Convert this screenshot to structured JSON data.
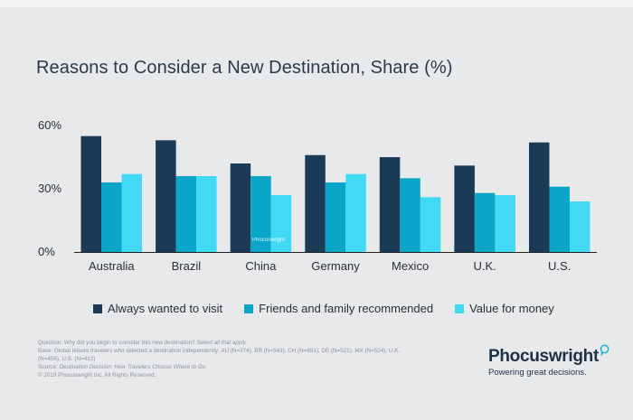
{
  "title": "Reasons to Consider a New Destination, Share (%)",
  "colors": {
    "always": "#1b3a56",
    "friends": "#0aa6c9",
    "value": "#42d9f5",
    "axis": "#222222",
    "background": "#e8e9eb"
  },
  "chart_data": {
    "type": "bar",
    "title": "Reasons to Consider a New Destination, Share (%)",
    "categories": [
      "Australia",
      "Brazil",
      "China",
      "Germany",
      "Mexico",
      "U.K.",
      "U.S."
    ],
    "series": [
      {
        "name": "Always wanted to visit",
        "values": [
          55,
          53,
          42,
          46,
          45,
          41,
          52
        ]
      },
      {
        "name": "Friends and family recommended",
        "values": [
          33,
          36,
          36,
          33,
          35,
          28,
          31
        ]
      },
      {
        "name": "Value for money",
        "values": [
          37,
          36,
          27,
          37,
          26,
          27,
          24
        ]
      }
    ],
    "ylim": [
      0,
      60
    ],
    "yticks": [
      "0%",
      "30%",
      "60%"
    ],
    "ytick_values": [
      0,
      30,
      60
    ],
    "xlabel": "",
    "ylabel": "",
    "grid": false,
    "legend_position": "bottom",
    "watermark": "Phocuswright"
  },
  "legend": [
    {
      "label": "Always wanted to visit",
      "color": "#1b3a56"
    },
    {
      "label": "Friends and family recommended",
      "color": "#0aa6c9"
    },
    {
      "label": "Value for money",
      "color": "#42d9f5"
    }
  ],
  "footnote": {
    "question_prefix": "Question: Why did you begin to consider this new destination? ",
    "question_italic": "Select all that apply.",
    "base_line1": "Base: Global leisure travelers who selected a destination independently: AU (N=374), BR (N=543), CH (N=691), DE (N=521), MX (N=524), U.K.",
    "base_line2": "(N=456), U.S. (N=412)",
    "source_prefix": "Source: ",
    "source_italic": "Destination Decision: How Travelers Choose Where to Go",
    "copyright": "© 2019  Phocuswright Inc. All Rights Reserved."
  },
  "brand": {
    "name": "Phocuswright",
    "tagline": "Powering great decisions."
  }
}
